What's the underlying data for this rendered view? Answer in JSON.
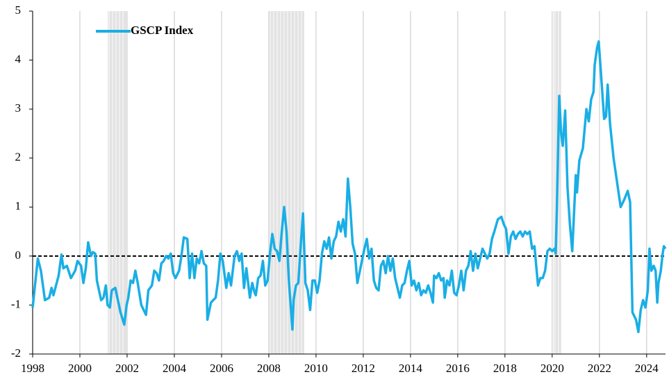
{
  "chart_data": {
    "type": "line",
    "xlim": [
      1998,
      2024.8
    ],
    "xticks": [
      1998,
      2000,
      2002,
      2004,
      2006,
      2008,
      2010,
      2012,
      2014,
      2016,
      2018,
      2020,
      2022,
      2024
    ],
    "ylim": [
      -2,
      5
    ],
    "yticks": [
      -2,
      -1,
      0,
      1,
      2,
      3,
      4,
      5
    ],
    "grid": true,
    "zero_line": 0,
    "legend": "upper left",
    "shaded_periods": [
      [
        2001.18,
        2001.97
      ],
      [
        2008.0,
        2009.5
      ],
      [
        2020.06,
        2020.38
      ]
    ],
    "series": [
      {
        "name": "GSCP Index",
        "color": "#1aaee5",
        "x": [
          1998.0,
          1998.12,
          1998.22,
          1998.35,
          1998.52,
          1998.7,
          1998.8,
          1998.88,
          1999.1,
          1999.22,
          1999.3,
          1999.45,
          1999.62,
          1999.8,
          1999.9,
          2000.05,
          2000.15,
          2000.25,
          2000.35,
          2000.47,
          2000.55,
          2000.65,
          2000.72,
          2000.9,
          2001.0,
          2001.1,
          2001.17,
          2001.27,
          2001.35,
          2001.5,
          2001.72,
          2001.88,
          2001.98,
          2002.05,
          2002.15,
          2002.25,
          2002.35,
          2002.45,
          2002.6,
          2002.75,
          2002.8,
          2002.9,
          2003.05,
          2003.15,
          2003.25,
          2003.35,
          2003.45,
          2003.55,
          2003.65,
          2003.75,
          2003.85,
          2003.95,
          2004.05,
          2004.2,
          2004.3,
          2004.4,
          2004.55,
          2004.65,
          2004.75,
          2004.85,
          2004.95,
          2005.05,
          2005.15,
          2005.25,
          2005.35,
          2005.4,
          2005.55,
          2005.75,
          2005.85,
          2005.95,
          2006.05,
          2006.2,
          2006.3,
          2006.4,
          2006.55,
          2006.65,
          2006.75,
          2006.85,
          2006.95,
          2007.05,
          2007.2,
          2007.3,
          2007.4,
          2007.45,
          2007.55,
          2007.65,
          2007.75,
          2007.85,
          2007.95,
          2008.05,
          2008.15,
          2008.25,
          2008.35,
          2008.45,
          2008.55,
          2008.65,
          2008.75,
          2008.85,
          2009.0,
          2009.05,
          2009.15,
          2009.25,
          2009.35,
          2009.45,
          2009.55,
          2009.65,
          2009.75,
          2009.85,
          2009.95,
          2010.05,
          2010.15,
          2010.25,
          2010.35,
          2010.45,
          2010.55,
          2010.65,
          2010.75,
          2010.85,
          2010.95,
          2011.05,
          2011.15,
          2011.25,
          2011.35,
          2011.45,
          2011.55,
          2011.65,
          2011.75,
          2011.9,
          2012.05,
          2012.15,
          2012.25,
          2012.35,
          2012.45,
          2012.55,
          2012.65,
          2012.75,
          2012.85,
          2012.95,
          2013.05,
          2013.15,
          2013.25,
          2013.35,
          2013.45,
          2013.55,
          2013.65,
          2013.75,
          2013.85,
          2013.95,
          2014.05,
          2014.15,
          2014.25,
          2014.35,
          2014.45,
          2014.55,
          2014.65,
          2014.75,
          2014.85,
          2014.95,
          2015.0,
          2015.1,
          2015.2,
          2015.3,
          2015.4,
          2015.45,
          2015.55,
          2015.65,
          2015.75,
          2015.85,
          2015.95,
          2016.05,
          2016.15,
          2016.25,
          2016.35,
          2016.45,
          2016.55,
          2016.65,
          2016.75,
          2016.85,
          2016.95,
          2017.05,
          2017.15,
          2017.25,
          2017.35,
          2017.45,
          2017.55,
          2017.7,
          2017.85,
          2017.95,
          2018.05,
          2018.15,
          2018.25,
          2018.35,
          2018.45,
          2018.55,
          2018.65,
          2018.75,
          2018.85,
          2018.95,
          2019.05,
          2019.15,
          2019.25,
          2019.4,
          2019.5,
          2019.6,
          2019.7,
          2019.8,
          2019.9,
          2020.0,
          2020.1,
          2020.15,
          2020.2,
          2020.3,
          2020.38,
          2020.45,
          2020.55,
          2020.65,
          2020.75,
          2020.85,
          2021.0,
          2021.05,
          2021.15,
          2021.3,
          2021.45,
          2021.55,
          2021.65,
          2021.75,
          2021.8,
          2021.9,
          2021.97,
          2022.1,
          2022.2,
          2022.28,
          2022.35,
          2022.45,
          2022.6,
          2022.75,
          2022.9,
          2023.05,
          2023.2,
          2023.3,
          2023.4,
          2023.55,
          2023.65,
          2023.75,
          2023.85,
          2023.95,
          2024.05,
          2024.12,
          2024.2,
          2024.3,
          2024.38,
          2024.45,
          2024.5,
          2024.6,
          2024.68,
          2024.73,
          2024.8
        ],
        "values": [
          -1.05,
          -0.5,
          -0.05,
          -0.3,
          -0.9,
          -0.85,
          -0.65,
          -0.8,
          -0.4,
          0.03,
          -0.25,
          -0.2,
          -0.45,
          -0.3,
          -0.1,
          -0.2,
          -0.55,
          -0.25,
          0.28,
          0.0,
          0.08,
          0.05,
          -0.5,
          -0.9,
          -0.85,
          -0.6,
          -1.0,
          -1.05,
          -0.7,
          -0.65,
          -1.15,
          -1.4,
          -1.0,
          -0.85,
          -0.5,
          -0.55,
          -0.3,
          -0.55,
          -1.0,
          -1.15,
          -1.2,
          -0.7,
          -0.6,
          -0.3,
          -0.35,
          -0.5,
          -0.15,
          -0.1,
          0.0,
          -0.05,
          0.05,
          -0.35,
          -0.45,
          -0.3,
          0.0,
          0.38,
          0.35,
          -0.45,
          0.05,
          -0.45,
          -0.05,
          -0.15,
          0.1,
          -0.15,
          -0.2,
          -1.3,
          -0.95,
          -0.85,
          -0.5,
          0.05,
          -0.1,
          -0.65,
          -0.35,
          -0.6,
          0.0,
          0.1,
          -0.1,
          0.05,
          -0.65,
          -0.25,
          -0.85,
          -0.55,
          -0.75,
          -0.8,
          -0.45,
          -0.4,
          -0.1,
          -0.6,
          -0.5,
          0.05,
          0.45,
          0.15,
          0.1,
          -0.1,
          0.5,
          1.0,
          0.5,
          -0.5,
          -1.5,
          -0.9,
          -0.6,
          -0.55,
          0.2,
          0.87,
          -0.55,
          -0.7,
          -1.1,
          -0.5,
          -0.5,
          -0.75,
          -0.5,
          0.05,
          0.3,
          0.15,
          0.38,
          -0.05,
          0.3,
          0.4,
          0.7,
          0.5,
          0.75,
          0.4,
          1.58,
          1.0,
          0.25,
          0.05,
          -0.55,
          -0.2,
          0.15,
          0.35,
          -0.05,
          0.15,
          -0.5,
          -0.65,
          -0.7,
          -0.2,
          -0.1,
          -0.35,
          0.0,
          -0.3,
          -0.05,
          -0.45,
          -0.65,
          -0.85,
          -0.6,
          -0.55,
          -0.3,
          -0.1,
          -0.6,
          -0.5,
          -0.7,
          -0.55,
          -0.8,
          -0.7,
          -0.75,
          -0.6,
          -0.75,
          -0.95,
          -0.4,
          -0.45,
          -0.35,
          -0.5,
          -0.45,
          -0.85,
          -0.5,
          -0.6,
          -0.3,
          -0.75,
          -0.8,
          -0.6,
          -0.3,
          -0.7,
          -0.3,
          -0.2,
          0.1,
          -0.3,
          0.05,
          -0.25,
          -0.05,
          0.15,
          0.05,
          -0.05,
          0.05,
          0.35,
          0.5,
          0.75,
          0.8,
          0.65,
          0.55,
          0.05,
          0.4,
          0.5,
          0.35,
          0.45,
          0.5,
          0.4,
          0.5,
          0.45,
          0.5,
          0.15,
          0.2,
          -0.6,
          -0.45,
          -0.45,
          -0.3,
          0.1,
          0.15,
          0.1,
          0.15,
          0.05,
          1.0,
          3.27,
          2.5,
          2.25,
          2.97,
          1.4,
          0.65,
          0.1,
          1.65,
          1.3,
          1.95,
          2.2,
          3.0,
          2.75,
          3.2,
          3.35,
          3.9,
          4.25,
          4.38,
          3.5,
          2.8,
          2.85,
          3.5,
          2.7,
          2.0,
          1.5,
          1.0,
          1.15,
          1.33,
          1.1,
          -1.15,
          -1.3,
          -1.55,
          -1.1,
          -0.9,
          -1.05,
          -0.7,
          0.15,
          -0.3,
          -0.2,
          -0.3,
          -0.95,
          -0.55,
          -0.3,
          0.05,
          0.2,
          0.15
        ]
      }
    ]
  }
}
